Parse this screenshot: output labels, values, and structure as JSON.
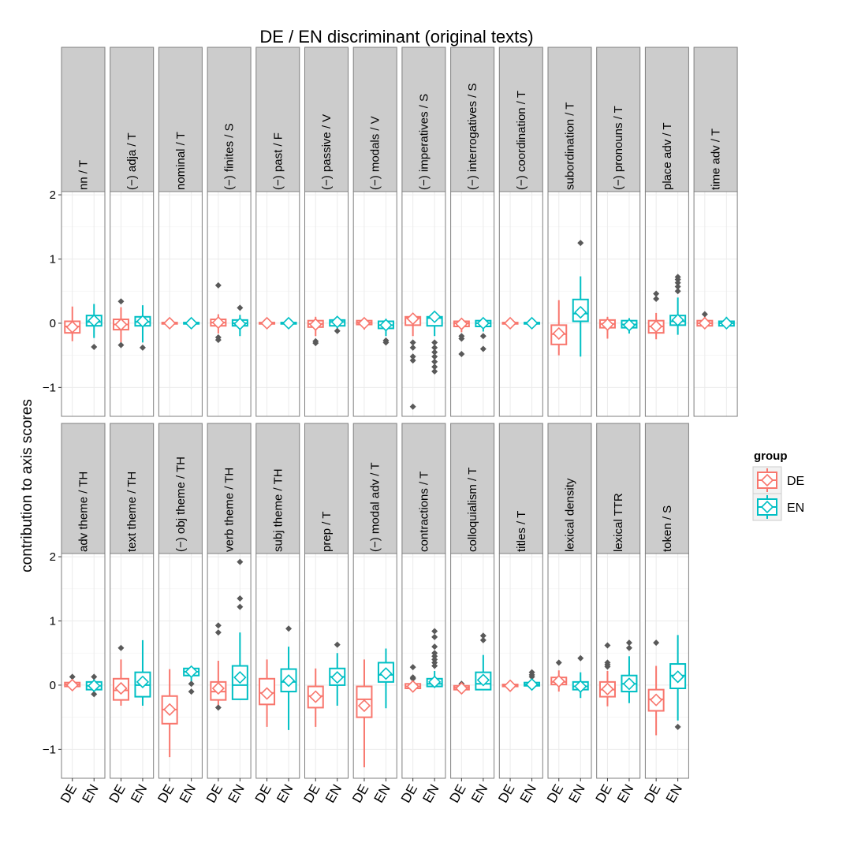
{
  "chart_data": {
    "type": "boxplot",
    "title": "DE / EN discriminant (original texts)",
    "ylabel": "contribution to axis scores",
    "ylim": [
      -1.45,
      2.05
    ],
    "yticks": [
      2,
      1,
      0,
      -1
    ],
    "ytick_labels": [
      "2",
      "1",
      "0",
      "−1"
    ],
    "x_categories": [
      "DE",
      "EN"
    ],
    "grid": true,
    "legend": {
      "title": "group",
      "position": "right",
      "entries": [
        {
          "name": "DE",
          "color": "#F8766D"
        },
        {
          "name": "EN",
          "color": "#00BFC4"
        }
      ]
    },
    "colors": {
      "DE": "#F8766D",
      "EN": "#00BFC4",
      "outlier": "#595959",
      "strip": "#cccccc",
      "grid": "#ebebeb"
    },
    "rows": [
      {
        "panels": [
          {
            "label": "nn / T",
            "DE": {
              "q1": -0.15,
              "median": -0.05,
              "q3": 0.03,
              "lo": -0.28,
              "hi": 0.26,
              "mean": -0.06,
              "outliers": []
            },
            "EN": {
              "q1": -0.04,
              "median": 0.02,
              "q3": 0.12,
              "lo": -0.23,
              "hi": 0.3,
              "mean": 0.04,
              "outliers": [
                -0.37
              ]
            }
          },
          {
            "label": "(−) adja / T",
            "DE": {
              "q1": -0.1,
              "median": -0.02,
              "q3": 0.06,
              "lo": -0.3,
              "hi": 0.25,
              "mean": -0.02,
              "outliers": [
                0.34,
                -0.34
              ]
            },
            "EN": {
              "q1": -0.04,
              "median": 0.02,
              "q3": 0.1,
              "lo": -0.3,
              "hi": 0.28,
              "mean": 0.03,
              "outliers": [
                -0.38
              ]
            }
          },
          {
            "label": "nominal / T",
            "DE": {
              "q1": -0.01,
              "median": 0.0,
              "q3": 0.01,
              "lo": -0.02,
              "hi": 0.02,
              "mean": 0.0,
              "outliers": []
            },
            "EN": {
              "q1": -0.01,
              "median": 0.0,
              "q3": 0.01,
              "lo": -0.02,
              "hi": 0.02,
              "mean": 0.0,
              "outliers": []
            }
          },
          {
            "label": "(−) finites / S",
            "DE": {
              "q1": -0.04,
              "median": 0.01,
              "q3": 0.06,
              "lo": -0.16,
              "hi": 0.14,
              "mean": 0.01,
              "outliers": [
                0.59,
                -0.22,
                -0.26
              ]
            },
            "EN": {
              "q1": -0.04,
              "median": 0.0,
              "q3": 0.05,
              "lo": -0.2,
              "hi": 0.13,
              "mean": -0.01,
              "outliers": [
                0.24
              ]
            }
          },
          {
            "label": "(−) past / F",
            "DE": {
              "q1": -0.01,
              "median": 0.0,
              "q3": 0.01,
              "lo": -0.03,
              "hi": 0.03,
              "mean": 0.0,
              "outliers": []
            },
            "EN": {
              "q1": -0.01,
              "median": 0.0,
              "q3": 0.01,
              "lo": -0.03,
              "hi": 0.03,
              "mean": 0.0,
              "outliers": []
            }
          },
          {
            "label": "(−) passive / V",
            "DE": {
              "q1": -0.06,
              "median": -0.01,
              "q3": 0.04,
              "lo": -0.2,
              "hi": 0.1,
              "mean": -0.02,
              "outliers": [
                -0.28,
                -0.31
              ]
            },
            "EN": {
              "q1": -0.04,
              "median": 0.02,
              "q3": 0.05,
              "lo": -0.1,
              "hi": 0.08,
              "mean": 0.02,
              "outliers": [
                -0.12
              ]
            }
          },
          {
            "label": "(−) modals / V",
            "DE": {
              "q1": -0.02,
              "median": 0.01,
              "q3": 0.04,
              "lo": -0.1,
              "hi": 0.07,
              "mean": 0.0,
              "outliers": []
            },
            "EN": {
              "q1": -0.08,
              "median": -0.03,
              "q3": 0.03,
              "lo": -0.2,
              "hi": 0.07,
              "mean": -0.03,
              "outliers": [
                -0.27,
                -0.3
              ]
            }
          },
          {
            "label": "(−) imperatives / S",
            "DE": {
              "q1": -0.03,
              "median": 0.08,
              "q3": 0.1,
              "lo": -0.2,
              "hi": 0.12,
              "mean": 0.07,
              "outliers": [
                -0.3,
                -0.38,
                -0.52,
                -0.58,
                -1.3
              ]
            },
            "EN": {
              "q1": -0.04,
              "median": 0.08,
              "q3": 0.1,
              "lo": -0.2,
              "hi": 0.12,
              "mean": 0.1,
              "outliers": [
                -0.3,
                -0.38,
                -0.45,
                -0.52,
                -0.6,
                -0.68,
                -0.75
              ]
            }
          },
          {
            "label": "(−) interrogatives / S",
            "DE": {
              "q1": -0.05,
              "median": 0.0,
              "q3": 0.03,
              "lo": -0.14,
              "hi": 0.06,
              "mean": -0.01,
              "outliers": [
                -0.2,
                -0.24,
                -0.48
              ]
            },
            "EN": {
              "q1": -0.05,
              "median": 0.0,
              "q3": 0.04,
              "lo": -0.13,
              "hi": 0.07,
              "mean": 0.0,
              "outliers": [
                -0.2,
                -0.4
              ]
            }
          },
          {
            "label": "(−) coordination / T",
            "DE": {
              "q1": -0.01,
              "median": 0.0,
              "q3": 0.01,
              "lo": -0.02,
              "hi": 0.02,
              "mean": 0.0,
              "outliers": []
            },
            "EN": {
              "q1": -0.01,
              "median": 0.0,
              "q3": 0.01,
              "lo": -0.02,
              "hi": 0.02,
              "mean": 0.0,
              "outliers": []
            }
          },
          {
            "label": "subordination / T",
            "DE": {
              "q1": -0.33,
              "median": -0.17,
              "q3": -0.03,
              "lo": -0.5,
              "hi": 0.36,
              "mean": -0.16,
              "outliers": []
            },
            "EN": {
              "q1": 0.03,
              "median": 0.15,
              "q3": 0.37,
              "lo": -0.52,
              "hi": 0.73,
              "mean": 0.17,
              "outliers": [
                1.25
              ]
            }
          },
          {
            "label": "(−) pronouns / T",
            "DE": {
              "q1": -0.07,
              "median": -0.01,
              "q3": 0.05,
              "lo": -0.24,
              "hi": 0.1,
              "mean": -0.02,
              "outliers": []
            },
            "EN": {
              "q1": -0.07,
              "median": -0.02,
              "q3": 0.04,
              "lo": -0.16,
              "hi": 0.08,
              "mean": -0.03,
              "outliers": []
            }
          },
          {
            "label": "place adv / T",
            "DE": {
              "q1": -0.15,
              "median": -0.05,
              "q3": 0.04,
              "lo": -0.25,
              "hi": 0.16,
              "mean": -0.05,
              "outliers": [
                0.46,
                0.38
              ]
            },
            "EN": {
              "q1": -0.03,
              "median": 0.03,
              "q3": 0.12,
              "lo": -0.18,
              "hi": 0.4,
              "mean": 0.05,
              "outliers": [
                0.5,
                0.57,
                0.63,
                0.68,
                0.72
              ]
            }
          },
          {
            "label": "time adv / T",
            "DE": {
              "q1": -0.04,
              "median": 0.0,
              "q3": 0.04,
              "lo": -0.08,
              "hi": 0.1,
              "mean": 0.0,
              "outliers": [
                0.14
              ]
            },
            "EN": {
              "q1": -0.04,
              "median": 0.0,
              "q3": 0.03,
              "lo": -0.08,
              "hi": 0.1,
              "mean": 0.0,
              "outliers": []
            }
          }
        ]
      },
      {
        "panels": [
          {
            "label": "adv theme / TH",
            "DE": {
              "q1": -0.02,
              "median": 0.01,
              "q3": 0.04,
              "lo": -0.05,
              "hi": 0.08,
              "mean": 0.0,
              "outliers": [
                0.13
              ]
            },
            "EN": {
              "q1": -0.07,
              "median": -0.01,
              "q3": 0.05,
              "lo": -0.12,
              "hi": 0.1,
              "mean": -0.01,
              "outliers": [
                0.13,
                -0.14
              ]
            }
          },
          {
            "label": "text theme / TH",
            "DE": {
              "q1": -0.23,
              "median": -0.08,
              "q3": 0.1,
              "lo": -0.32,
              "hi": 0.4,
              "mean": -0.05,
              "outliers": [
                0.58
              ]
            },
            "EN": {
              "q1": -0.18,
              "median": 0.0,
              "q3": 0.2,
              "lo": -0.32,
              "hi": 0.7,
              "mean": 0.05,
              "outliers": []
            }
          },
          {
            "label": "(−) obj theme / TH",
            "DE": {
              "q1": -0.6,
              "median": -0.38,
              "q3": -0.17,
              "lo": -1.12,
              "hi": 0.25,
              "mean": -0.38,
              "outliers": []
            },
            "EN": {
              "q1": 0.15,
              "median": 0.21,
              "q3": 0.26,
              "lo": 0.05,
              "hi": 0.3,
              "mean": 0.21,
              "outliers": [
                -0.1,
                0.02
              ]
            }
          },
          {
            "label": "verb theme / TH",
            "DE": {
              "q1": -0.23,
              "median": -0.1,
              "q3": 0.05,
              "lo": -0.36,
              "hi": 0.38,
              "mean": -0.05,
              "outliers": [
                0.82,
                0.93,
                -0.35
              ]
            },
            "EN": {
              "q1": -0.22,
              "median": 0.0,
              "q3": 0.3,
              "lo": -0.22,
              "hi": 0.82,
              "mean": 0.12,
              "outliers": [
                1.92,
                1.35,
                1.22
              ]
            }
          },
          {
            "label": "subj theme / TH",
            "DE": {
              "q1": -0.3,
              "median": -0.12,
              "q3": 0.1,
              "lo": -0.65,
              "hi": 0.4,
              "mean": -0.13,
              "outliers": []
            },
            "EN": {
              "q1": -0.1,
              "median": 0.05,
              "q3": 0.25,
              "lo": -0.7,
              "hi": 0.6,
              "mean": 0.07,
              "outliers": [
                0.88
              ]
            }
          },
          {
            "label": "prep / T",
            "DE": {
              "q1": -0.35,
              "median": -0.17,
              "q3": -0.02,
              "lo": -0.65,
              "hi": 0.26,
              "mean": -0.18,
              "outliers": []
            },
            "EN": {
              "q1": 0.0,
              "median": 0.13,
              "q3": 0.26,
              "lo": -0.32,
              "hi": 0.5,
              "mean": 0.12,
              "outliers": [
                0.63
              ]
            }
          },
          {
            "label": "(−) modal adv / T",
            "DE": {
              "q1": -0.5,
              "median": -0.22,
              "q3": -0.02,
              "lo": -1.28,
              "hi": 0.4,
              "mean": -0.32,
              "outliers": []
            },
            "EN": {
              "q1": 0.05,
              "median": 0.16,
              "q3": 0.35,
              "lo": -0.36,
              "hi": 0.57,
              "mean": 0.18,
              "outliers": []
            }
          },
          {
            "label": "contractions / T",
            "DE": {
              "q1": -0.05,
              "median": -0.02,
              "q3": 0.02,
              "lo": -0.07,
              "hi": 0.08,
              "mean": -0.02,
              "outliers": [
                0.28,
                0.12,
                0.1
              ]
            },
            "EN": {
              "q1": -0.02,
              "median": 0.02,
              "q3": 0.1,
              "lo": -0.02,
              "hi": 0.22,
              "mean": 0.05,
              "outliers": [
                0.84,
                0.75,
                0.6,
                0.5,
                0.45,
                0.4,
                0.35,
                0.3
              ]
            }
          },
          {
            "label": "colloquialism / T",
            "DE": {
              "q1": -0.07,
              "median": -0.04,
              "q3": -0.01,
              "lo": -0.1,
              "hi": 0.0,
              "mean": -0.05,
              "outliers": [
                0.02
              ]
            },
            "EN": {
              "q1": -0.07,
              "median": 0.02,
              "q3": 0.2,
              "lo": -0.07,
              "hi": 0.47,
              "mean": 0.08,
              "outliers": [
                0.77,
                0.7
              ]
            }
          },
          {
            "label": "titles / T",
            "DE": {
              "q1": -0.02,
              "median": 0.0,
              "q3": 0.01,
              "lo": -0.04,
              "hi": 0.03,
              "mean": -0.01,
              "outliers": []
            },
            "EN": {
              "q1": -0.01,
              "median": 0.01,
              "q3": 0.04,
              "lo": -0.04,
              "hi": 0.1,
              "mean": 0.01,
              "outliers": [
                0.2,
                0.16,
                0.13
              ]
            }
          },
          {
            "label": "lexical density",
            "DE": {
              "q1": 0.01,
              "median": 0.05,
              "q3": 0.12,
              "lo": -0.1,
              "hi": 0.23,
              "mean": 0.06,
              "outliers": [
                0.35
              ]
            },
            "EN": {
              "q1": -0.07,
              "median": -0.02,
              "q3": 0.05,
              "lo": -0.2,
              "hi": 0.2,
              "mean": -0.02,
              "outliers": [
                0.42
              ]
            }
          },
          {
            "label": "lexical TTR",
            "DE": {
              "q1": -0.18,
              "median": -0.07,
              "q3": 0.05,
              "lo": -0.33,
              "hi": 0.22,
              "mean": -0.06,
              "outliers": [
                0.62,
                0.35,
                0.32,
                0.29
              ]
            },
            "EN": {
              "q1": -0.1,
              "median": 0.02,
              "q3": 0.15,
              "lo": -0.28,
              "hi": 0.45,
              "mean": 0.02,
              "outliers": [
                0.66,
                0.58
              ]
            }
          },
          {
            "label": "token / S",
            "DE": {
              "q1": -0.4,
              "median": -0.22,
              "q3": -0.07,
              "lo": -0.78,
              "hi": 0.3,
              "mean": -0.23,
              "outliers": [
                0.66
              ]
            },
            "EN": {
              "q1": -0.05,
              "median": 0.15,
              "q3": 0.33,
              "lo": -0.55,
              "hi": 0.78,
              "mean": 0.13,
              "outliers": [
                -0.65
              ]
            }
          }
        ]
      }
    ]
  }
}
